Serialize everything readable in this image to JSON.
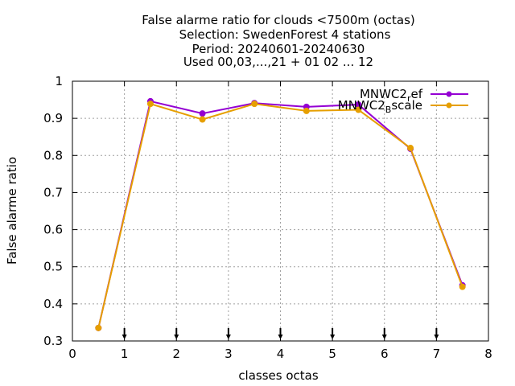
{
  "chart_data": {
    "type": "line",
    "title_lines": [
      "False alarme ratio  for clouds <7500m (octas)",
      "Selection: SwedenForest      4 stations",
      "Period: 20240601-20240630",
      "Used 00,03,...,21 + 01 02 ... 12"
    ],
    "xlabel": "classes octas",
    "ylabel": "False alarme ratio",
    "xlim": [
      0,
      8
    ],
    "ylim": [
      0.3,
      1.0
    ],
    "xticks": [
      "0",
      "1",
      "2",
      "3",
      "4",
      "5",
      "6",
      "7",
      "8"
    ],
    "yticks": [
      "0.3",
      "0.4",
      "0.5",
      "0.6",
      "0.7",
      "0.8",
      "0.9",
      "1"
    ],
    "grid": true,
    "legend_position": "top-right",
    "x": [
      0.5,
      1.5,
      2.5,
      3.5,
      4.5,
      5.5,
      6.5,
      7.5
    ],
    "series": [
      {
        "name_base": "MNWC2",
        "name_sub": "r",
        "name_rest": "ef",
        "color": "#9400d3",
        "values": [
          0.335,
          0.946,
          0.913,
          0.941,
          0.931,
          0.937,
          0.818,
          0.45
        ]
      },
      {
        "name_base": "MNWC2",
        "name_sub": "B",
        "name_rest": "scale",
        "color": "#e69f00",
        "values": [
          0.335,
          0.939,
          0.897,
          0.939,
          0.92,
          0.923,
          0.82,
          0.446
        ]
      }
    ]
  }
}
